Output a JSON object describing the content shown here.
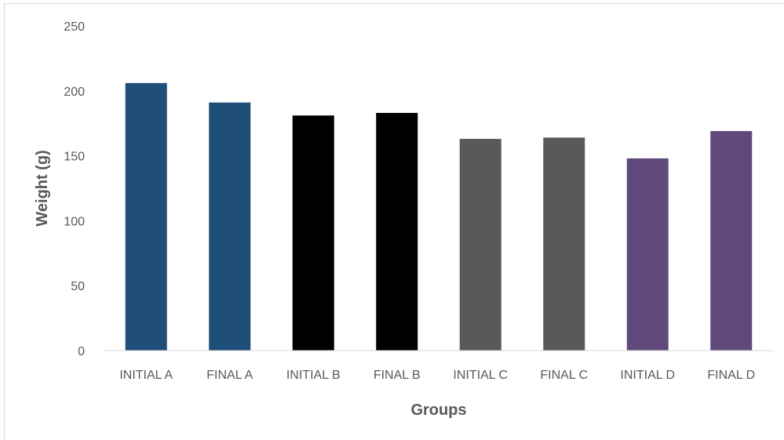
{
  "chart_data": {
    "type": "bar",
    "title": "",
    "xlabel": "Groups",
    "ylabel": "Weight (g)",
    "ylim": [
      0,
      250
    ],
    "yticks": [
      0,
      50,
      100,
      150,
      200,
      250
    ],
    "grid": false,
    "legend": "none",
    "categories": [
      "INITIAL A",
      "FINAL A",
      "INITIAL B",
      "FINAL B",
      "INITIAL C",
      "FINAL C",
      "INITIAL D",
      "FINAL D"
    ],
    "values": [
      206,
      191,
      181,
      183,
      163,
      164,
      148,
      169
    ],
    "bar_colors": [
      "#1f4e79",
      "#1f4e79",
      "#000000",
      "#000000",
      "#595959",
      "#595959",
      "#604a7b",
      "#604a7b"
    ]
  }
}
